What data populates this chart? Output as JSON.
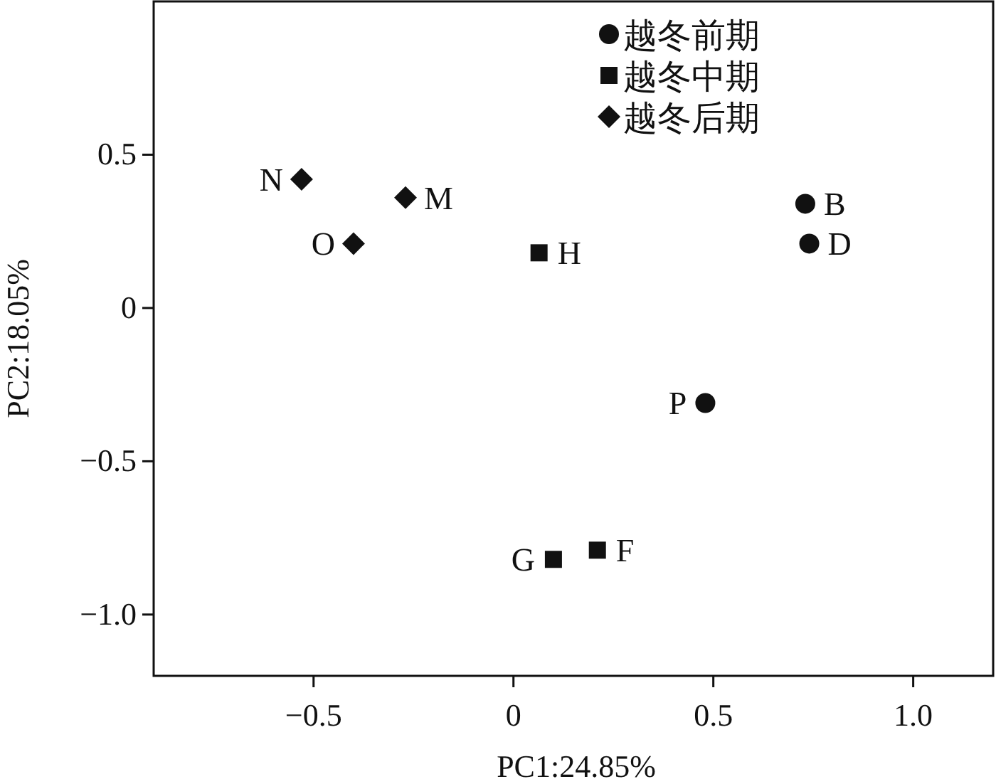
{
  "chart_data": {
    "type": "scatter",
    "xlabel": "PC1:24.85%",
    "ylabel": "PC2:18.05%",
    "xlim": [
      -0.9,
      1.2
    ],
    "ylim": [
      -1.2,
      1.0
    ],
    "xticks": [
      {
        "value": -0.5,
        "label": "−0.5"
      },
      0,
      0.5,
      {
        "value": 1.0,
        "label": "1.0"
      }
    ],
    "yticks": [
      0.5,
      0,
      {
        "value": -0.5,
        "label": "−0.5"
      },
      {
        "value": -1.0,
        "label": "−1.0"
      }
    ],
    "grid": false,
    "legend": "top",
    "series": [
      {
        "name": "越冬前期",
        "color": "#111111",
        "marker": "circle",
        "x": [
          0.73,
          0.74,
          0.48
        ],
        "values": [
          0.34,
          0.21,
          -0.31
        ]
      },
      {
        "name": "越冬中期",
        "color": "#111111",
        "marker": "square",
        "x": [
          0.064,
          0.1,
          0.21
        ],
        "values": [
          0.18,
          -0.82,
          -0.79
        ]
      },
      {
        "name": "越冬后期",
        "color": "#111111",
        "marker": "diamond",
        "x": [
          -0.53,
          -0.27,
          -0.4
        ],
        "values": [
          0.42,
          0.36,
          0.21
        ]
      }
    ],
    "annotations": [
      {
        "text": "B",
        "x": 0.73,
        "y": 0.34
      },
      {
        "text": "D",
        "x": 0.74,
        "y": 0.21
      },
      {
        "text": "P",
        "x": 0.48,
        "y": -0.31
      },
      {
        "text": "H",
        "x": 0.064,
        "y": 0.18
      },
      {
        "text": "G",
        "x": 0.1,
        "y": -0.82
      },
      {
        "text": "F",
        "x": 0.21,
        "y": -0.79
      },
      {
        "text": "N",
        "x": -0.53,
        "y": 0.42
      },
      {
        "text": "M",
        "x": -0.27,
        "y": 0.36
      },
      {
        "text": "O",
        "x": -0.4,
        "y": 0.21
      }
    ]
  }
}
